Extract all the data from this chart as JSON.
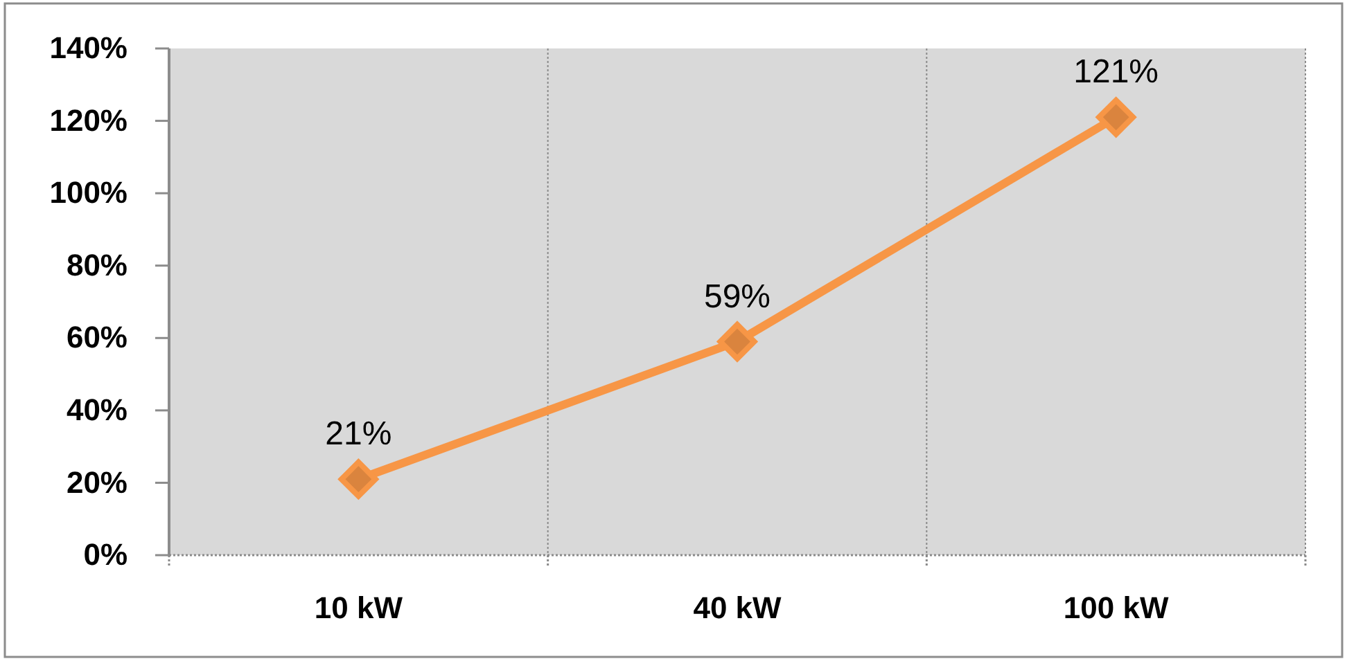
{
  "chart_data": {
    "type": "line",
    "categories": [
      "10 kW",
      "40 kW",
      "100 kW"
    ],
    "series": [
      {
        "color": "#f79646",
        "values": [
          21,
          59,
          121
        ],
        "value_labels": [
          "21%",
          "59%",
          "121%"
        ]
      }
    ],
    "ylim": [
      0,
      140
    ],
    "yticks": [
      {
        "value": 0,
        "label": "0%"
      },
      {
        "value": 20,
        "label": "20%"
      },
      {
        "value": 40,
        "label": "40%"
      },
      {
        "value": 60,
        "label": "60%"
      },
      {
        "value": 80,
        "label": "80%"
      },
      {
        "value": 100,
        "label": "100%"
      },
      {
        "value": 120,
        "label": "120%"
      },
      {
        "value": 140,
        "label": "140%"
      }
    ],
    "grid": "x",
    "marker": "diamond",
    "line_style": "solid"
  }
}
